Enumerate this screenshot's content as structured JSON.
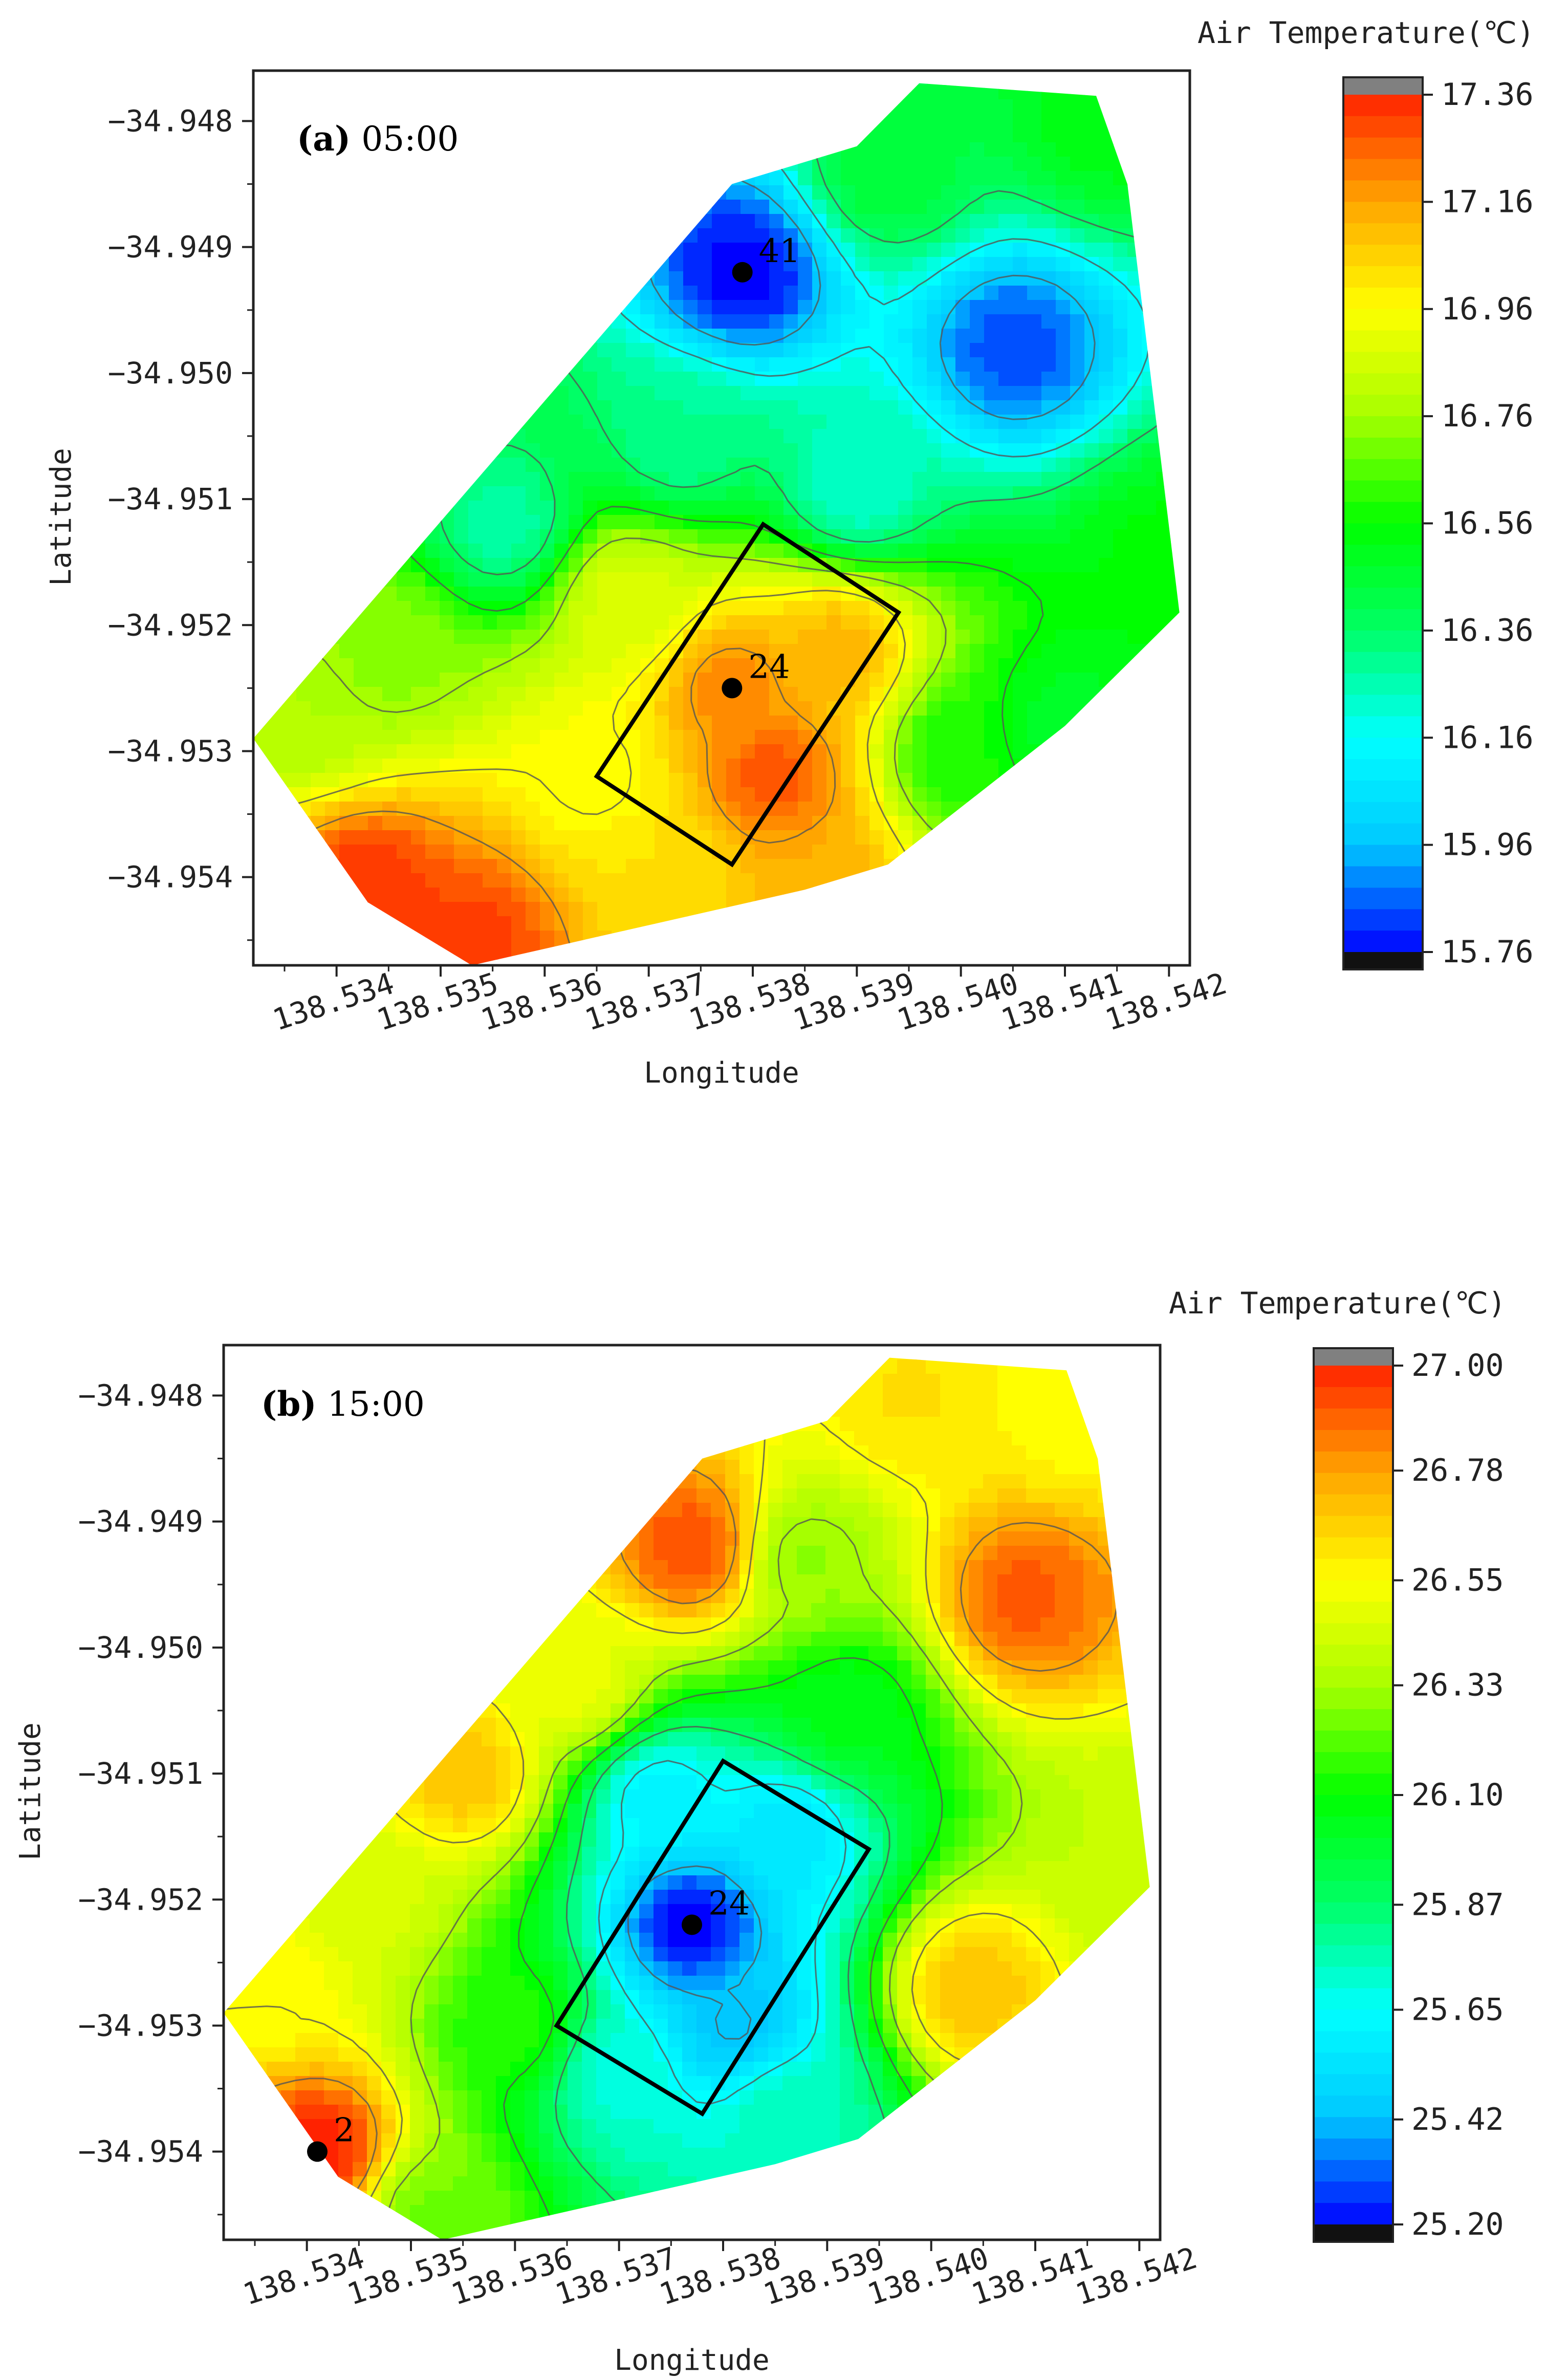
{
  "chart_data": [
    {
      "type": "heatmap",
      "subtype": "contour",
      "panel_letter": "a",
      "panel_time": "05:00",
      "xlabel": "Longitude",
      "ylabel": "Latitude",
      "x_ticks": [
        "138.534",
        "138.535",
        "138.536",
        "138.537",
        "138.538",
        "138.539",
        "138.540",
        "138.541",
        "138.542"
      ],
      "y_ticks": [
        "-34.948",
        "-34.949",
        "-34.950",
        "-34.951",
        "-34.952",
        "-34.953",
        "-34.954"
      ],
      "xlim": [
        138.5332,
        138.5422
      ],
      "ylim": [
        -34.9547,
        -34.9476
      ],
      "colorbar": {
        "title": "Air Temperature(℃)",
        "ticks": [
          "17.36",
          "17.16",
          "16.96",
          "16.76",
          "16.56",
          "16.36",
          "16.16",
          "15.96",
          "15.76"
        ],
        "min": 15.76,
        "max": 17.36,
        "colormap": [
          "#0000ff",
          "#00c8ff",
          "#00ffff",
          "#00ff66",
          "#00ff00",
          "#a6ff00",
          "#ffff00",
          "#ffa500",
          "#ff2200"
        ]
      },
      "sites": [
        {
          "label": "41",
          "lon": 138.5379,
          "lat": -34.9492
        },
        {
          "label": "24",
          "lon": 138.5378,
          "lat": -34.9525
        }
      ],
      "rectangle_corners": [
        [
          138.5381,
          -34.9512
        ],
        [
          138.5394,
          -34.9519
        ],
        [
          138.5378,
          -34.9539
        ],
        [
          138.5365,
          -34.9532
        ]
      ],
      "hull": [
        [
          138.5353,
          -34.9547
        ],
        [
          138.5343,
          -34.9542
        ],
        [
          138.5332,
          -34.9529
        ],
        [
          138.5378,
          -34.9485
        ],
        [
          138.539,
          -34.9482
        ],
        [
          138.5396,
          -34.9477
        ],
        [
          138.5413,
          -34.9478
        ],
        [
          138.5416,
          -34.9485
        ],
        [
          138.5421,
          -34.9519
        ],
        [
          138.541,
          -34.9528
        ],
        [
          138.5393,
          -34.9539
        ],
        [
          138.5385,
          -34.9541
        ],
        [
          138.5369,
          -34.9544
        ]
      ],
      "samples": [
        {
          "lon": 138.5379,
          "lat": -34.9492,
          "t": 15.76
        },
        {
          "lon": 138.539,
          "lat": -34.9509,
          "t": 16.22
        },
        {
          "lon": 138.5405,
          "lat": -34.9498,
          "t": 15.84
        },
        {
          "lon": 138.5356,
          "lat": -34.9512,
          "t": 16.28
        },
        {
          "lon": 138.5373,
          "lat": -34.9505,
          "t": 16.3
        },
        {
          "lon": 138.5393,
          "lat": -34.9484,
          "t": 16.45
        },
        {
          "lon": 138.5414,
          "lat": -34.948,
          "t": 16.52
        },
        {
          "lon": 138.542,
          "lat": -34.9515,
          "t": 16.55
        },
        {
          "lon": 138.541,
          "lat": -34.9528,
          "t": 16.48
        },
        {
          "lon": 138.54,
          "lat": -34.953,
          "t": 16.58
        },
        {
          "lon": 138.5337,
          "lat": -34.9527,
          "t": 16.78
        },
        {
          "lon": 138.5345,
          "lat": -34.9522,
          "t": 16.72
        },
        {
          "lon": 138.5368,
          "lat": -34.9518,
          "t": 16.88
        },
        {
          "lon": 138.5378,
          "lat": -34.9525,
          "t": 17.2
        },
        {
          "lon": 138.5382,
          "lat": -34.9532,
          "t": 17.28
        },
        {
          "lon": 138.5388,
          "lat": -34.9522,
          "t": 17.12
        },
        {
          "lon": 138.5386,
          "lat": -34.954,
          "t": 17.14
        },
        {
          "lon": 138.5372,
          "lat": -34.954,
          "t": 17.02
        },
        {
          "lon": 138.5343,
          "lat": -34.9541,
          "t": 17.34
        },
        {
          "lon": 138.5353,
          "lat": -34.9545,
          "t": 17.32
        },
        {
          "lon": 138.5365,
          "lat": -34.9532,
          "t": 16.95
        }
      ]
    },
    {
      "type": "heatmap",
      "subtype": "contour",
      "panel_letter": "b",
      "panel_time": "15:00",
      "xlabel": "Longitude",
      "ylabel": "Latitude",
      "x_ticks": [
        "138.534",
        "138.535",
        "138.536",
        "138.537",
        "138.538",
        "138.539",
        "138.540",
        "138.541",
        "138.542"
      ],
      "y_ticks": [
        "-34.948",
        "-34.949",
        "-34.950",
        "-34.951",
        "-34.952",
        "-34.953",
        "-34.954"
      ],
      "xlim": [
        138.5332,
        138.5422
      ],
      "ylim": [
        -34.9547,
        -34.9476
      ],
      "colorbar": {
        "title": "Air Temperature(℃)",
        "ticks": [
          "27.00",
          "26.78",
          "26.55",
          "26.33",
          "26.10",
          "25.87",
          "25.65",
          "25.42",
          "25.20"
        ],
        "min": 25.2,
        "max": 27.0,
        "colormap": [
          "#0000ff",
          "#00c8ff",
          "#00ffff",
          "#00ff66",
          "#00ff00",
          "#a6ff00",
          "#ffff00",
          "#ffa500",
          "#ff2200"
        ]
      },
      "sites": [
        {
          "label": "24",
          "lon": 138.5377,
          "lat": -34.9522
        },
        {
          "label": "2",
          "lon": 138.5341,
          "lat": -34.954
        }
      ],
      "rectangle_corners": [
        [
          138.538,
          -34.9509
        ],
        [
          138.5394,
          -34.9516
        ],
        [
          138.5378,
          -34.9537
        ],
        [
          138.5364,
          -34.953
        ]
      ],
      "hull": [
        [
          138.5353,
          -34.9547
        ],
        [
          138.5343,
          -34.9542
        ],
        [
          138.5332,
          -34.9529
        ],
        [
          138.5378,
          -34.9485
        ],
        [
          138.539,
          -34.9482
        ],
        [
          138.5396,
          -34.9477
        ],
        [
          138.5413,
          -34.9478
        ],
        [
          138.5416,
          -34.9485
        ],
        [
          138.5421,
          -34.9519
        ],
        [
          138.541,
          -34.9528
        ],
        [
          138.5393,
          -34.9539
        ],
        [
          138.5385,
          -34.9541
        ],
        [
          138.5369,
          -34.9544
        ]
      ],
      "samples": [
        {
          "lon": 138.5377,
          "lat": -34.9522,
          "t": 25.2
        },
        {
          "lon": 138.5381,
          "lat": -34.953,
          "t": 25.42
        },
        {
          "lon": 138.5374,
          "lat": -34.9512,
          "t": 25.6
        },
        {
          "lon": 138.5386,
          "lat": -34.9515,
          "t": 25.55
        },
        {
          "lon": 138.5392,
          "lat": -34.9505,
          "t": 26.05
        },
        {
          "lon": 138.537,
          "lat": -34.9534,
          "t": 25.7
        },
        {
          "lon": 138.5386,
          "lat": -34.9537,
          "t": 25.75
        },
        {
          "lon": 138.5377,
          "lat": -34.9492,
          "t": 26.92
        },
        {
          "lon": 138.5409,
          "lat": -34.9496,
          "t": 26.9
        },
        {
          "lon": 138.5398,
          "lat": -34.948,
          "t": 26.62
        },
        {
          "lon": 138.5414,
          "lat": -34.9481,
          "t": 26.55
        },
        {
          "lon": 138.5404,
          "lat": -34.9527,
          "t": 26.7
        },
        {
          "lon": 138.542,
          "lat": -34.9518,
          "t": 26.4
        },
        {
          "lon": 138.5355,
          "lat": -34.951,
          "t": 26.7
        },
        {
          "lon": 138.5366,
          "lat": -34.9503,
          "t": 26.5
        },
        {
          "lon": 138.5341,
          "lat": -34.954,
          "t": 27.0
        },
        {
          "lon": 138.5352,
          "lat": -34.9545,
          "t": 26.25
        },
        {
          "lon": 138.536,
          "lat": -34.953,
          "t": 26.15
        },
        {
          "lon": 138.5337,
          "lat": -34.9527,
          "t": 26.55
        },
        {
          "lon": 138.5346,
          "lat": -34.952,
          "t": 26.45
        },
        {
          "lon": 138.5388,
          "lat": -34.9493,
          "t": 26.3
        }
      ]
    }
  ]
}
